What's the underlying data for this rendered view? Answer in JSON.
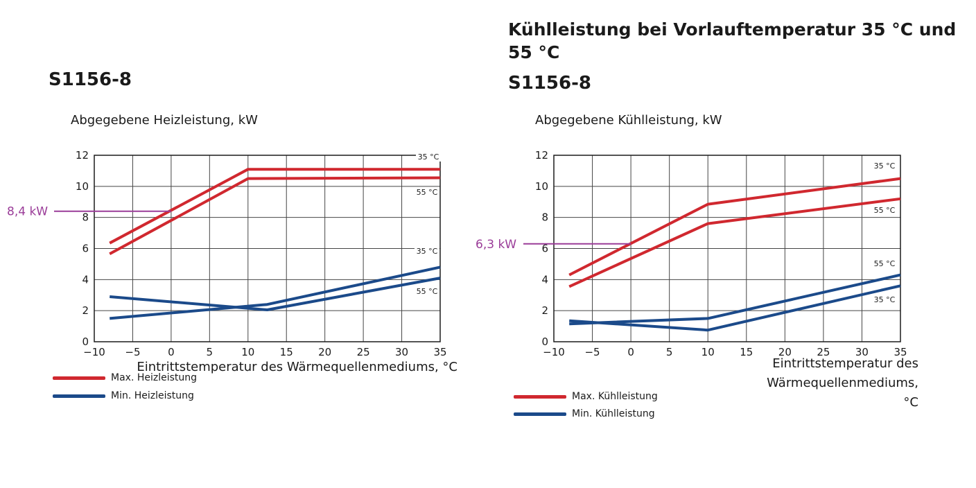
{
  "left": {
    "model": "S1156-8",
    "legend": [
      {
        "label": "Max. Heizleistung",
        "color": "#d0282f"
      },
      {
        "label": "Min. Heizleistung",
        "color": "#1b4a8a"
      }
    ]
  },
  "right": {
    "title": "Kühlleistung bei Vorlauftemperatur 35 °C und 55 °C",
    "model": "S1156-8",
    "legend": [
      {
        "label": "Max. Kühlleistung",
        "color": "#d0282f"
      },
      {
        "label": "Min. Kühlleistung",
        "color": "#1b4a8a"
      }
    ]
  },
  "chart_data": [
    {
      "type": "line",
      "ylabel": "Abgegebene Heizleistung, kW",
      "xlabel": "Eintrittstemperatur des Wärmequellenmediums, °C",
      "xlim": [
        -10,
        35
      ],
      "ylim": [
        0,
        12
      ],
      "xticks": [
        -10,
        -5,
        0,
        5,
        10,
        15,
        20,
        25,
        30,
        35
      ],
      "yticks": [
        0,
        2,
        4,
        6,
        8,
        10,
        12
      ],
      "grid": true,
      "series": [
        {
          "name": "Max. Heizleistung",
          "color": "#d0282f",
          "label": "35 °C",
          "points": [
            [
              -8,
              6.35
            ],
            [
              10,
              11.1
            ],
            [
              35,
              11.1
            ]
          ]
        },
        {
          "name": "Max. Heizleistung",
          "color": "#d0282f",
          "label": "55 °C",
          "points": [
            [
              -8,
              5.65
            ],
            [
              10,
              10.5
            ],
            [
              35,
              10.55
            ]
          ]
        },
        {
          "name": "Min. Heizleistung",
          "color": "#1b4a8a",
          "label": "35 °C",
          "points": [
            [
              -8,
              1.5
            ],
            [
              12.5,
              2.4
            ],
            [
              35,
              4.8
            ]
          ]
        },
        {
          "name": "Min. Heizleistung",
          "color": "#1b4a8a",
          "label": "55 °C",
          "points": [
            [
              -8,
              2.9
            ],
            [
              12.5,
              2.05
            ],
            [
              35,
              4.1
            ]
          ]
        }
      ],
      "annotation": {
        "text": "8,4 kW",
        "value": 8.4,
        "color": "#9a3c98"
      }
    },
    {
      "type": "line",
      "ylabel": "Abgegebene Kühlleistung, kW",
      "xlabel": "Eintrittstemperatur des Wärmequellenmediums, °C",
      "xlim": [
        -10,
        35
      ],
      "ylim": [
        0,
        12
      ],
      "xticks": [
        -10,
        -5,
        0,
        5,
        10,
        15,
        20,
        25,
        30,
        35
      ],
      "yticks": [
        0,
        2,
        4,
        6,
        8,
        10,
        12
      ],
      "grid": true,
      "series": [
        {
          "name": "Max. Kühlleistung",
          "color": "#d0282f",
          "label": "35 °C",
          "points": [
            [
              -8,
              4.3
            ],
            [
              10,
              8.85
            ],
            [
              35,
              10.5
            ]
          ]
        },
        {
          "name": "Max. Kühlleistung",
          "color": "#d0282f",
          "label": "55 °C",
          "points": [
            [
              -8,
              3.55
            ],
            [
              10,
              7.6
            ],
            [
              35,
              9.2
            ]
          ]
        },
        {
          "name": "Min. Kühlleistung",
          "color": "#1b4a8a",
          "label": "55 °C",
          "points": [
            [
              -8,
              1.15
            ],
            [
              10,
              1.5
            ],
            [
              35,
              4.3
            ]
          ]
        },
        {
          "name": "Min. Kühlleistung",
          "color": "#1b4a8a",
          "label": "35 °C",
          "points": [
            [
              -8,
              1.35
            ],
            [
              10,
              0.75
            ],
            [
              35,
              3.6
            ]
          ]
        }
      ],
      "annotation": {
        "text": "6,3 kW",
        "value": 6.3,
        "color": "#9a3c98"
      }
    }
  ]
}
